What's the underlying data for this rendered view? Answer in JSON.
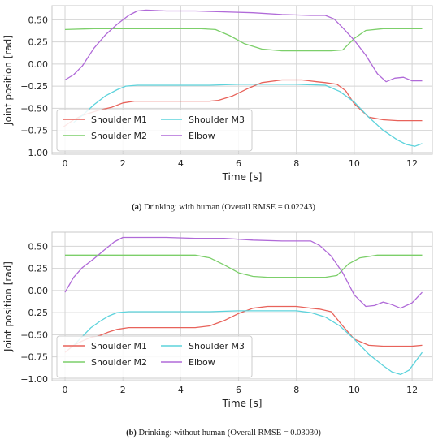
{
  "chart_data": [
    {
      "type": "line",
      "caption_label": "(a)",
      "caption_text": "Drinking: with human (Overall RMSE = 0.02243)",
      "xlabel": "Time [s]",
      "ylabel": "Joint position [rad]",
      "xlim": [
        -0.45,
        12.7
      ],
      "ylim": [
        -1.02,
        0.66
      ],
      "xticks": [
        0,
        2,
        4,
        6,
        8,
        10,
        12
      ],
      "yticks": [
        -1.0,
        -0.75,
        -0.5,
        -0.25,
        0.0,
        0.25,
        0.5
      ],
      "ytick_labels": [
        "−1.00",
        "−0.75",
        "−0.50",
        "−0.25",
        "0.00",
        "0.25",
        "0.50"
      ],
      "grid": true,
      "legend_position": "bottom-left",
      "series": [
        {
          "name": "Shoulder M1",
          "color": "#e8625a",
          "x": [
            -0.05,
            0.3,
            0.6,
            0.9,
            1.2,
            1.6,
            2.0,
            2.4,
            3.0,
            4.0,
            5.0,
            5.3,
            5.8,
            6.3,
            6.8,
            7.5,
            8.2,
            8.7,
            9.0,
            9.4,
            9.7,
            10.0,
            10.5,
            11.0,
            11.5,
            12.0,
            12.35
          ],
          "y": [
            -0.71,
            -0.63,
            -0.58,
            -0.55,
            -0.52,
            -0.49,
            -0.44,
            -0.42,
            -0.42,
            -0.42,
            -0.42,
            -0.41,
            -0.36,
            -0.28,
            -0.21,
            -0.18,
            -0.18,
            -0.2,
            -0.21,
            -0.23,
            -0.3,
            -0.45,
            -0.6,
            -0.63,
            -0.64,
            -0.64,
            -0.64
          ]
        },
        {
          "name": "Shoulder M2",
          "color": "#7ccf6a",
          "x": [
            0.0,
            1.0,
            2.0,
            3.0,
            4.0,
            4.7,
            5.2,
            5.7,
            6.2,
            6.8,
            7.5,
            8.5,
            9.2,
            9.6,
            10.0,
            10.4,
            11.0,
            11.5,
            12.35
          ],
          "y": [
            0.39,
            0.4,
            0.4,
            0.4,
            0.4,
            0.4,
            0.39,
            0.32,
            0.23,
            0.17,
            0.15,
            0.15,
            0.15,
            0.16,
            0.29,
            0.38,
            0.4,
            0.4,
            0.4
          ]
        },
        {
          "name": "Shoulder M3",
          "color": "#5dd3dc",
          "x": [
            0.3,
            0.6,
            1.0,
            1.4,
            1.8,
            2.1,
            2.5,
            3.0,
            4.0,
            5.0,
            6.0,
            7.0,
            8.0,
            9.0,
            9.5,
            10.0,
            10.5,
            11.0,
            11.5,
            11.8,
            12.1,
            12.35
          ],
          "y": [
            -0.66,
            -0.58,
            -0.46,
            -0.36,
            -0.29,
            -0.25,
            -0.24,
            -0.24,
            -0.24,
            -0.24,
            -0.23,
            -0.23,
            -0.23,
            -0.24,
            -0.31,
            -0.43,
            -0.6,
            -0.75,
            -0.86,
            -0.91,
            -0.93,
            -0.9
          ]
        },
        {
          "name": "Elbow",
          "color": "#b06ad8",
          "x": [
            0.0,
            0.3,
            0.6,
            1.0,
            1.4,
            1.8,
            2.2,
            2.5,
            2.8,
            3.5,
            4.5,
            5.5,
            6.5,
            7.5,
            8.5,
            9.0,
            9.3,
            9.6,
            10.0,
            10.4,
            10.8,
            11.1,
            11.4,
            11.7,
            12.0,
            12.35
          ],
          "y": [
            -0.18,
            -0.12,
            -0.02,
            0.18,
            0.33,
            0.45,
            0.55,
            0.6,
            0.61,
            0.6,
            0.6,
            0.59,
            0.58,
            0.56,
            0.55,
            0.55,
            0.51,
            0.41,
            0.27,
            0.1,
            -0.11,
            -0.2,
            -0.16,
            -0.15,
            -0.19,
            -0.19
          ]
        }
      ]
    },
    {
      "type": "line",
      "caption_label": "(b)",
      "caption_text": "Drinking: without human (Overall RMSE = 0.03030)",
      "xlabel": "Time [s]",
      "ylabel": "Joint position [rad]",
      "xlim": [
        -0.45,
        12.7
      ],
      "ylim": [
        -1.02,
        0.66
      ],
      "xticks": [
        0,
        2,
        4,
        6,
        8,
        10,
        12
      ],
      "yticks": [
        -1.0,
        -0.75,
        -0.5,
        -0.25,
        0.0,
        0.25,
        0.5
      ],
      "ytick_labels": [
        "−1.00",
        "−0.75",
        "−0.50",
        "−0.25",
        "0.00",
        "0.25",
        "0.50"
      ],
      "grid": true,
      "legend_position": "bottom-left",
      "series": [
        {
          "name": "Shoulder M1",
          "color": "#e8625a",
          "x": [
            0.0,
            0.3,
            0.6,
            0.9,
            1.2,
            1.5,
            1.8,
            2.2,
            3.0,
            4.0,
            4.5,
            5.0,
            5.5,
            6.0,
            6.5,
            7.0,
            8.0,
            8.5,
            8.8,
            9.2,
            9.6,
            10.0,
            10.5,
            11.0,
            12.0,
            12.35
          ],
          "y": [
            -0.7,
            -0.62,
            -0.57,
            -0.53,
            -0.51,
            -0.47,
            -0.44,
            -0.42,
            -0.42,
            -0.42,
            -0.42,
            -0.4,
            -0.34,
            -0.26,
            -0.2,
            -0.18,
            -0.18,
            -0.2,
            -0.21,
            -0.24,
            -0.4,
            -0.55,
            -0.62,
            -0.63,
            -0.63,
            -0.62
          ]
        },
        {
          "name": "Shoulder M2",
          "color": "#7ccf6a",
          "x": [
            0.0,
            1.0,
            2.0,
            3.0,
            4.0,
            4.5,
            5.0,
            5.5,
            6.0,
            6.5,
            7.0,
            8.0,
            9.0,
            9.4,
            9.8,
            10.2,
            10.8,
            11.5,
            12.35
          ],
          "y": [
            0.4,
            0.4,
            0.4,
            0.4,
            0.4,
            0.4,
            0.37,
            0.29,
            0.2,
            0.16,
            0.15,
            0.15,
            0.15,
            0.17,
            0.3,
            0.37,
            0.4,
            0.4,
            0.4
          ]
        },
        {
          "name": "Shoulder M3",
          "color": "#5dd3dc",
          "x": [
            0.3,
            0.6,
            0.9,
            1.2,
            1.5,
            1.8,
            2.2,
            3.0,
            4.0,
            5.0,
            6.0,
            7.0,
            8.0,
            8.5,
            9.0,
            9.5,
            10.0,
            10.5,
            11.0,
            11.3,
            11.6,
            11.9,
            12.35
          ],
          "y": [
            -0.62,
            -0.52,
            -0.42,
            -0.35,
            -0.29,
            -0.25,
            -0.24,
            -0.24,
            -0.24,
            -0.24,
            -0.23,
            -0.23,
            -0.23,
            -0.25,
            -0.3,
            -0.4,
            -0.55,
            -0.72,
            -0.85,
            -0.92,
            -0.95,
            -0.9,
            -0.7
          ]
        },
        {
          "name": "Elbow",
          "color": "#b06ad8",
          "x": [
            0.0,
            0.3,
            0.6,
            1.0,
            1.4,
            1.7,
            2.0,
            2.5,
            3.5,
            4.5,
            5.5,
            6.5,
            7.5,
            8.0,
            8.5,
            8.8,
            9.2,
            9.6,
            10.0,
            10.4,
            10.7,
            11.0,
            11.3,
            11.6,
            12.0,
            12.35
          ],
          "y": [
            -0.02,
            0.15,
            0.26,
            0.36,
            0.47,
            0.55,
            0.6,
            0.6,
            0.6,
            0.59,
            0.59,
            0.57,
            0.56,
            0.56,
            0.56,
            0.51,
            0.39,
            0.2,
            -0.05,
            -0.18,
            -0.17,
            -0.13,
            -0.16,
            -0.2,
            -0.14,
            -0.02
          ]
        }
      ]
    }
  ]
}
